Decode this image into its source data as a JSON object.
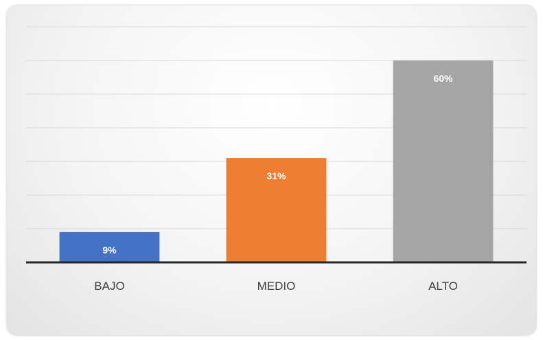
{
  "chart_data": {
    "type": "bar",
    "categories": [
      "BAJO",
      "MEDIO",
      "ALTO"
    ],
    "values": [
      9,
      31,
      60
    ],
    "value_labels": [
      "9%",
      "31%",
      "60%"
    ],
    "colors": [
      "#4472c4",
      "#ed7d31",
      "#a5a5a5"
    ],
    "ylim": [
      0,
      70
    ],
    "grid": true,
    "title": "",
    "xlabel": "",
    "ylabel": ""
  }
}
